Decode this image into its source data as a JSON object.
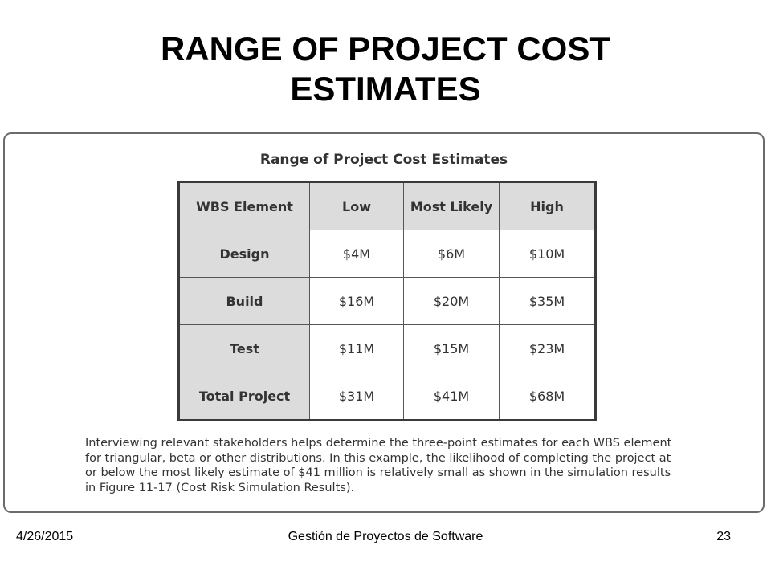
{
  "slide": {
    "title_line1": "RANGE OF PROJECT COST",
    "title_line2": "ESTIMATES"
  },
  "figure": {
    "title": "Range of Project Cost Estimates",
    "table": {
      "headers": [
        "WBS Element",
        "Low",
        "Most Likely",
        "High"
      ],
      "rows": [
        {
          "element": "Design",
          "low": "$4M",
          "most_likely": "$6M",
          "high": "$10M"
        },
        {
          "element": "Build",
          "low": "$16M",
          "most_likely": "$20M",
          "high": "$35M"
        },
        {
          "element": "Test",
          "low": "$11M",
          "most_likely": "$15M",
          "high": "$23M"
        },
        {
          "element": "Total Project",
          "low": "$31M",
          "most_likely": "$41M",
          "high": "$68M"
        }
      ]
    },
    "caption": "Interviewing relevant stakeholders helps determine the three-point estimates for each WBS element for triangular, beta or other distributions. In this example, the likelihood of completing the project at or below the most likely estimate of $41 million is relatively small as shown in the simulation results in Figure 11-17 (Cost Risk Simulation Results)."
  },
  "footer": {
    "date": "4/26/2015",
    "course": "Gestión de Proyectos de Software",
    "page": "23"
  }
}
